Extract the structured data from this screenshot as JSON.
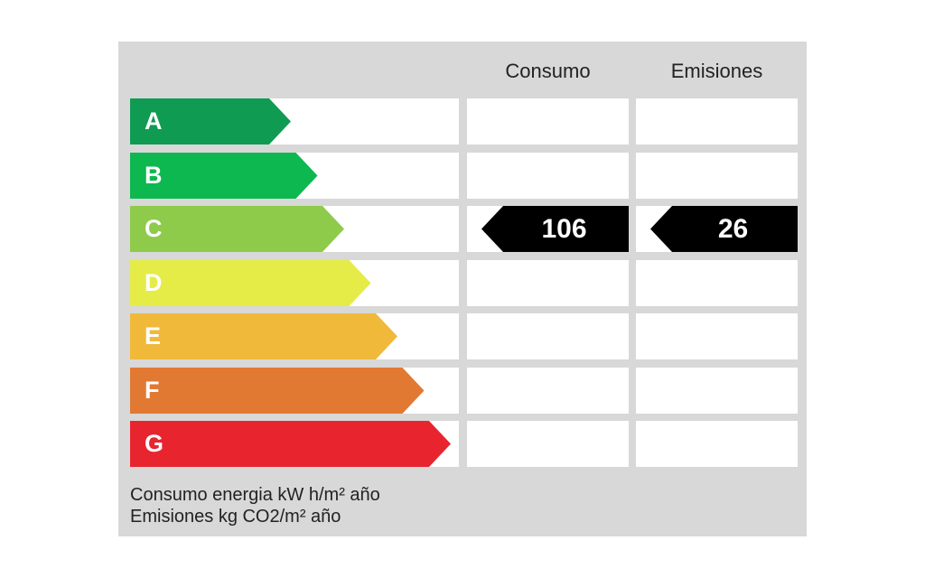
{
  "headers": {
    "consumo": "Consumo",
    "emisiones": "Emisiones"
  },
  "ratings": [
    {
      "letter": "A",
      "color": "#0f9b52"
    },
    {
      "letter": "B",
      "color": "#0cb84f"
    },
    {
      "letter": "C",
      "color": "#8ecb4a"
    },
    {
      "letter": "D",
      "color": "#e5ec48"
    },
    {
      "letter": "E",
      "color": "#f0b93a"
    },
    {
      "letter": "F",
      "color": "#e27933"
    },
    {
      "letter": "G",
      "color": "#e8242f"
    }
  ],
  "current": {
    "rating": "C",
    "consumo": "106",
    "emisiones": "26",
    "marker_color": "#000000"
  },
  "footer": {
    "line1": "Consumo energia kW h/m² año",
    "line2": "Emisiones kg CO2/m² año"
  }
}
